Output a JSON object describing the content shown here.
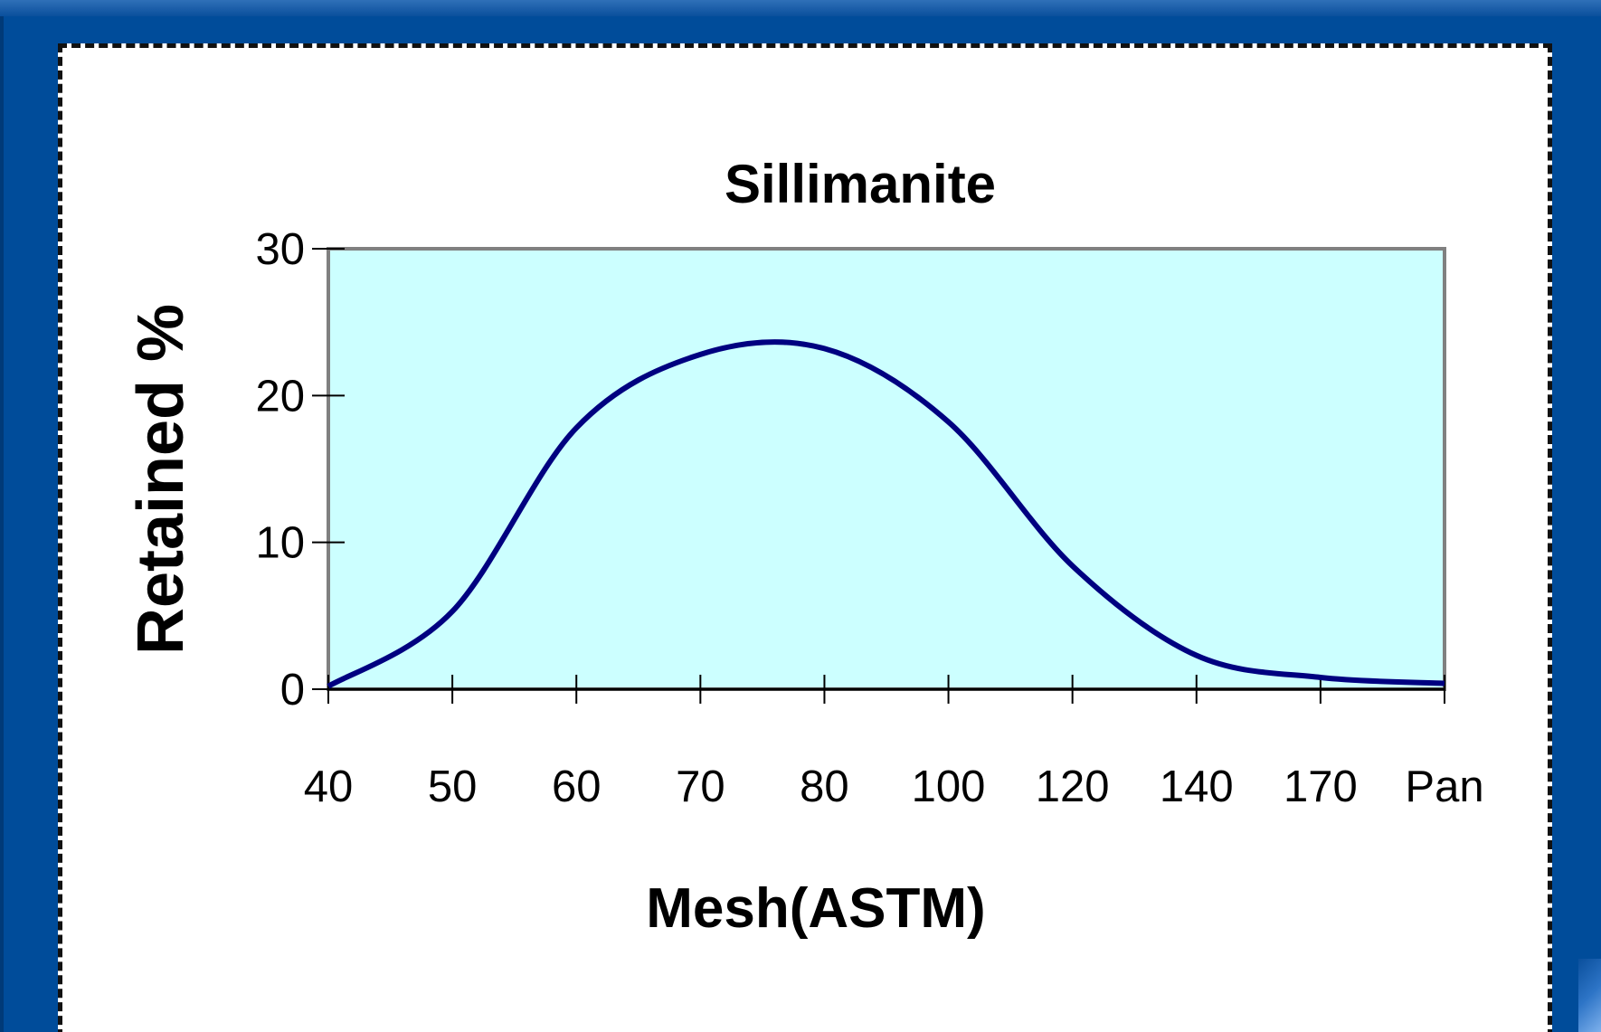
{
  "chart_data": {
    "type": "line",
    "title": "Sillimanite",
    "xlabel": "Mesh(ASTM)",
    "ylabel": "Retained %",
    "categories": [
      "40",
      "50",
      "60",
      "70",
      "80",
      "100",
      "120",
      "140",
      "170",
      "Pan"
    ],
    "series": [
      {
        "values": [
          0.2,
          5.3,
          17.8,
          22.8,
          23.2,
          18.2,
          8.4,
          2.3,
          0.8,
          0.4
        ],
        "color": "#000080"
      }
    ],
    "ylim": [
      0,
      30
    ],
    "yticks": [
      "0",
      "10",
      "20",
      "30"
    ],
    "plot_background": "#ccffff",
    "line_style": "smooth",
    "legend": "none"
  },
  "colors": {
    "slide_background": "#004c9a",
    "panel_background": "#ffffff",
    "plot_border": "#808080",
    "series_line": "#000080"
  }
}
